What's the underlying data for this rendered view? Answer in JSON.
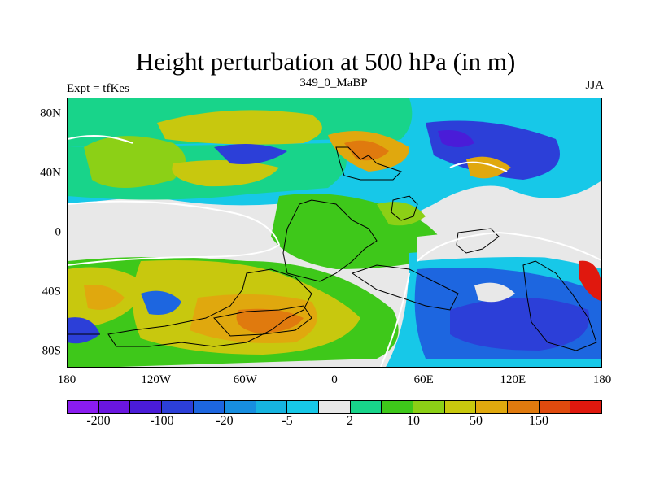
{
  "title": "Height perturbation at 500 hPa (in m)",
  "left_label": "Expt = tfKes",
  "center_label": "349_0_MaBP",
  "right_label": "JJA",
  "x_ticks": [
    "180",
    "120W",
    "60W",
    "0",
    "60E",
    "120E",
    "180"
  ],
  "y_ticks": [
    "80N",
    "40N",
    "0",
    "40S",
    "80S"
  ],
  "colorbar": {
    "colors": [
      "#8a1cf0",
      "#6a16e0",
      "#4a1cd8",
      "#2c3fd8",
      "#1d66e0",
      "#178ee0",
      "#16b4e0",
      "#17c8e8",
      "#e8e8e8",
      "#18d48a",
      "#3ec81a",
      "#8cd016",
      "#c8c80e",
      "#e0a80e",
      "#e07a0e",
      "#e04a0e",
      "#e0180e"
    ],
    "labels": [
      "-200",
      "-100",
      "-20",
      "-5",
      "2",
      "10",
      "50",
      "150"
    ]
  }
}
